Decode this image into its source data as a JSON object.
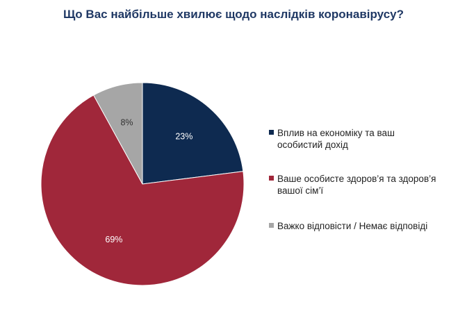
{
  "chart_data": {
    "type": "pie",
    "title": "Що Вас найбільше хвилює щодо наслідків коронавірусу?",
    "slices": [
      {
        "label_lines": [
          "Вплив на економіку та ваш",
          "особистий дохід"
        ],
        "value": 23,
        "display": "23%",
        "color": "#0e2a50",
        "label_color": "#ffffff"
      },
      {
        "label_lines": [
          "Ваше особисте здоров’я та здоров’я",
          "вашої сім’ї"
        ],
        "value": 69,
        "display": "69%",
        "color": "#a0273a",
        "label_color": "#ffffff"
      },
      {
        "label_lines": [
          "Важко відповісти / Немає відповіді"
        ],
        "value": 8,
        "display": "8%",
        "color": "#a6a6a6",
        "label_color": "#333333"
      }
    ],
    "legend_position": "right"
  }
}
